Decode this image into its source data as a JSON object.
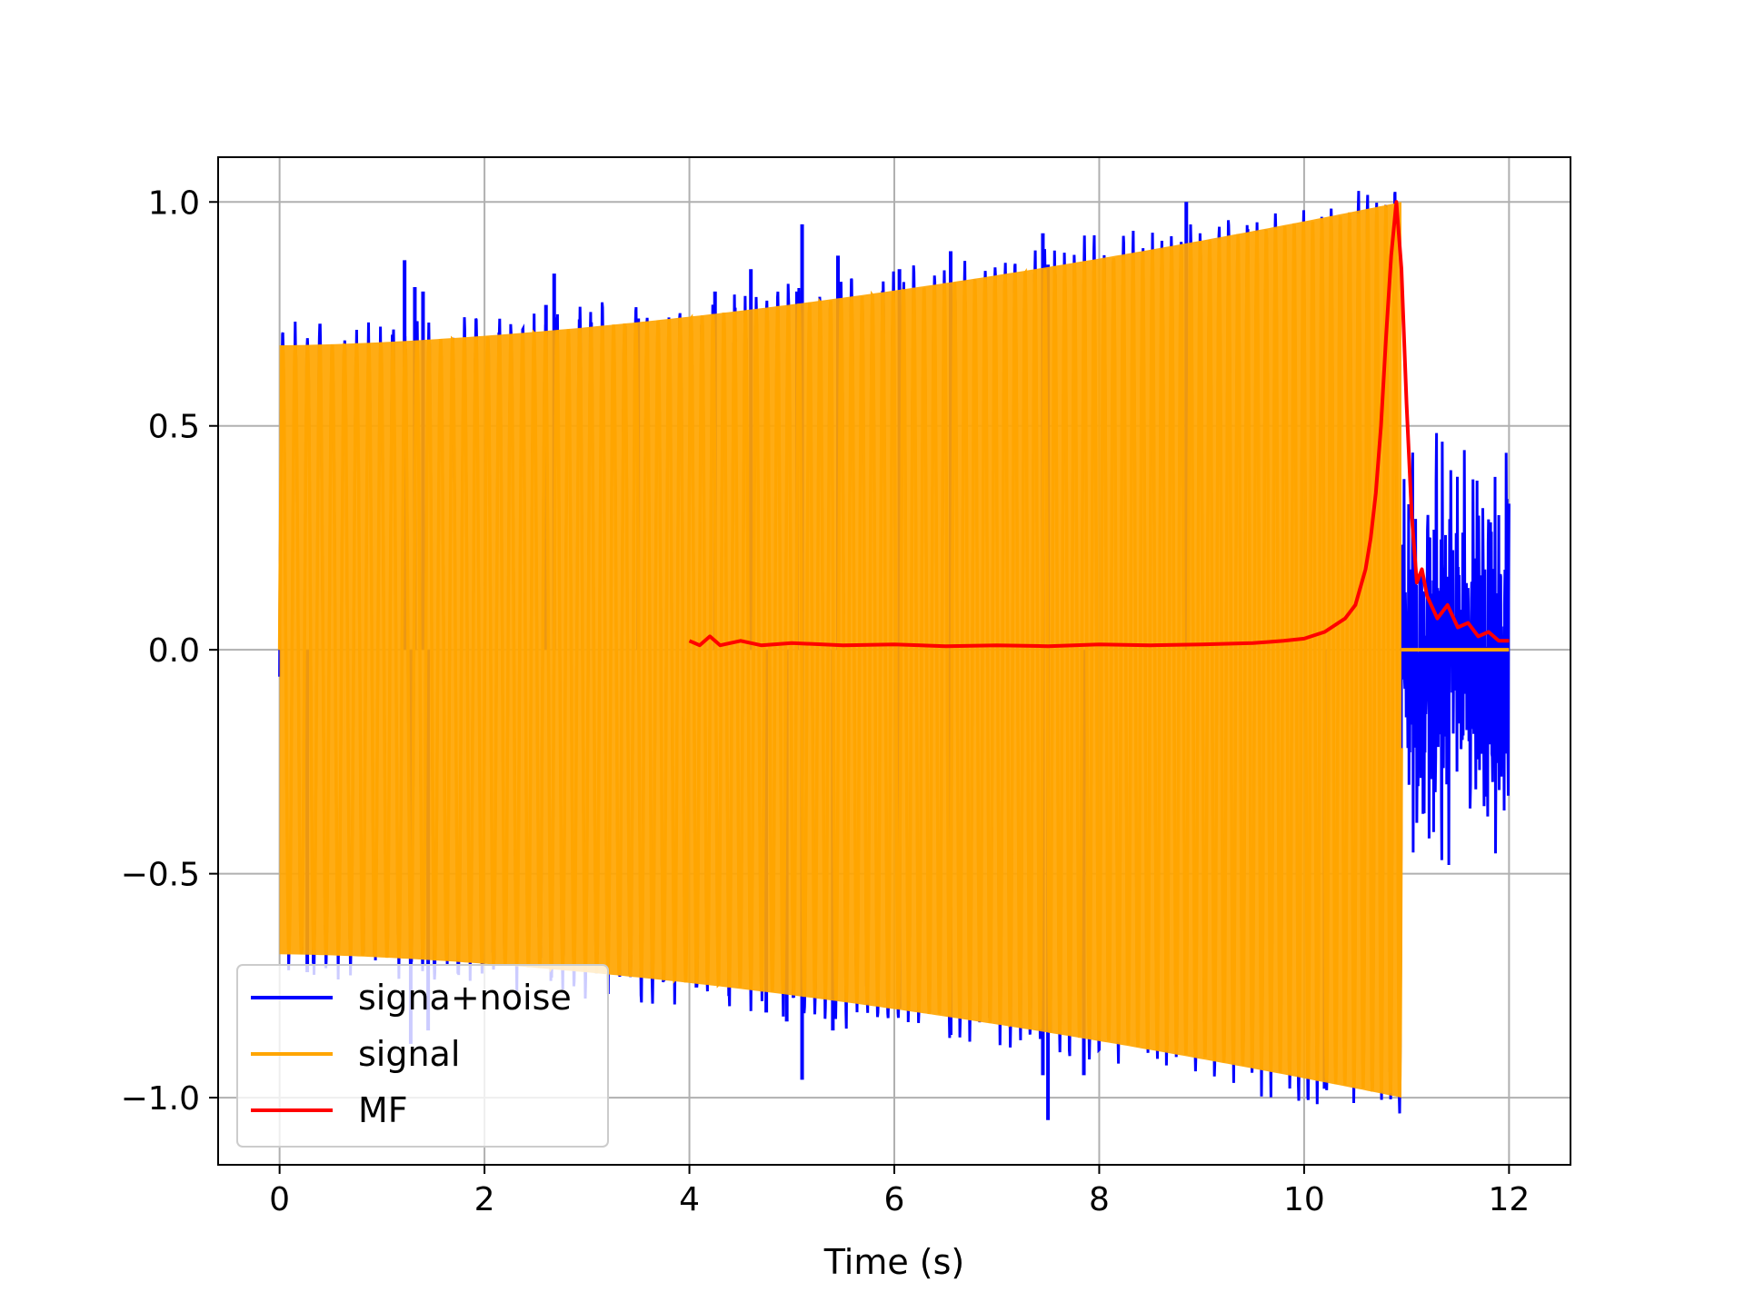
{
  "chart_data": {
    "type": "line",
    "title": "",
    "xlabel": "Time (s)",
    "ylabel": "",
    "xlim": [
      -0.6,
      12.6
    ],
    "ylim": [
      -1.15,
      1.1
    ],
    "xticks": [
      0,
      2,
      4,
      6,
      8,
      10,
      12
    ],
    "xtick_labels": [
      "0",
      "2",
      "4",
      "6",
      "8",
      "10",
      "12"
    ],
    "yticks": [
      1.0,
      0.5,
      0.0,
      -0.5,
      -1.0
    ],
    "ytick_labels": [
      "1.0",
      "0.5",
      "0.0",
      "−0.5",
      "−1.0"
    ],
    "grid": true,
    "legend_position": "lower-left",
    "series": [
      {
        "name": "signa+noise",
        "color": "#0000ff",
        "kind": "noisy-sinusoid",
        "x_range": [
          0,
          12
        ],
        "envelope_start": 0.68,
        "envelope_end": 1.0,
        "signal_end": 10.95,
        "tail_amplitude": 0.45,
        "spikes": [
          {
            "x": 1.22,
            "y": 0.87
          },
          {
            "x": 1.32,
            "y": 0.81
          },
          {
            "x": 1.4,
            "y": 0.8
          },
          {
            "x": 2.6,
            "y": 0.77
          },
          {
            "x": 2.68,
            "y": 0.84
          },
          {
            "x": 3.5,
            "y": 0.74
          },
          {
            "x": 4.25,
            "y": 0.8
          },
          {
            "x": 4.6,
            "y": 0.85
          },
          {
            "x": 5.05,
            "y": 0.8
          },
          {
            "x": 5.1,
            "y": 0.95
          },
          {
            "x": 5.45,
            "y": 0.88
          },
          {
            "x": 6.05,
            "y": 0.85
          },
          {
            "x": 6.55,
            "y": 0.89
          },
          {
            "x": 7.45,
            "y": 0.93
          },
          {
            "x": 7.5,
            "y": 0.86
          },
          {
            "x": 8.85,
            "y": 1.0
          },
          {
            "x": 0.27,
            "y": -0.72
          },
          {
            "x": 1.28,
            "y": -0.88
          },
          {
            "x": 1.45,
            "y": -0.85
          },
          {
            "x": 4.75,
            "y": -0.81
          },
          {
            "x": 4.95,
            "y": -0.83
          },
          {
            "x": 5.1,
            "y": -0.96
          },
          {
            "x": 5.4,
            "y": -0.85
          },
          {
            "x": 6.05,
            "y": -0.8
          },
          {
            "x": 6.55,
            "y": -0.86
          },
          {
            "x": 7.45,
            "y": -0.95
          },
          {
            "x": 7.5,
            "y": -1.05
          },
          {
            "x": 7.85,
            "y": -0.95
          },
          {
            "x": 10.2,
            "y": -0.98
          }
        ]
      },
      {
        "name": "signal",
        "color": "#ffa500",
        "kind": "sinusoid",
        "x_range": [
          0,
          10.95
        ],
        "envelope_start": 0.68,
        "envelope_end": 1.0,
        "after": {
          "x": [
            10.95,
            12.0
          ],
          "y": 0.0
        }
      },
      {
        "name": "MF",
        "color": "#ff0000",
        "kind": "line",
        "x": [
          4.0,
          4.1,
          4.2,
          4.3,
          4.5,
          4.7,
          5.0,
          5.5,
          6.0,
          6.5,
          7.0,
          7.5,
          8.0,
          8.5,
          9.0,
          9.5,
          9.8,
          10.0,
          10.2,
          10.4,
          10.5,
          10.6,
          10.65,
          10.7,
          10.75,
          10.8,
          10.85,
          10.9,
          10.95,
          11.0,
          11.05,
          11.1,
          11.15,
          11.2,
          11.3,
          11.4,
          11.5,
          11.6,
          11.7,
          11.8,
          11.9,
          12.0
        ],
        "y": [
          0.02,
          0.01,
          0.03,
          0.01,
          0.02,
          0.01,
          0.015,
          0.01,
          0.012,
          0.008,
          0.01,
          0.008,
          0.012,
          0.01,
          0.012,
          0.015,
          0.02,
          0.025,
          0.04,
          0.07,
          0.1,
          0.18,
          0.25,
          0.35,
          0.5,
          0.7,
          0.88,
          1.0,
          0.85,
          0.55,
          0.3,
          0.15,
          0.18,
          0.12,
          0.07,
          0.1,
          0.05,
          0.06,
          0.03,
          0.04,
          0.02,
          0.02
        ]
      }
    ]
  }
}
